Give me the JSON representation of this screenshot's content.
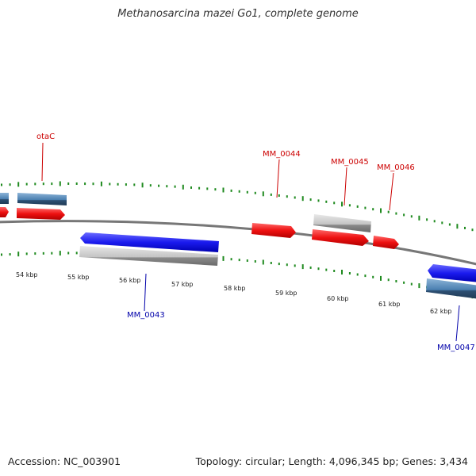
{
  "header": {
    "title": "Methanosarcina mazei Go1, complete genome"
  },
  "footer": {
    "accession_label": "Accession:",
    "accession": "NC_003901",
    "topology_label": "Topology:",
    "topology": "circular",
    "length_label": "Length:",
    "length": "4,096,345 bp",
    "genes_label": "Genes:",
    "genes": "3,434"
  },
  "colors": {
    "forward_gene": "#ee1111",
    "reverse_gene": "#1a1aee",
    "forward_label": "#cc0000",
    "reverse_label": "#0000aa",
    "feature_gray": "#bdbdbd",
    "feature_steel": "#4a7fb0",
    "tick": "#1f8a1f",
    "backbone": "#7a7a7a"
  },
  "ruler": {
    "unit": "kbp",
    "labels": [
      "54 kbp",
      "55 kbp",
      "56 kbp",
      "57 kbp",
      "58 kbp",
      "59 kbp",
      "60 kbp",
      "61 kbp",
      "62 kbp"
    ]
  },
  "gene_labels": [
    {
      "name": "otaC",
      "strand": "forward"
    },
    {
      "name": "MM_0044",
      "strand": "forward"
    },
    {
      "name": "MM_0045",
      "strand": "forward"
    },
    {
      "name": "MM_0046",
      "strand": "forward"
    },
    {
      "name": "MM_0043",
      "strand": "reverse"
    },
    {
      "name": "MM_0047",
      "strand": "reverse"
    }
  ]
}
